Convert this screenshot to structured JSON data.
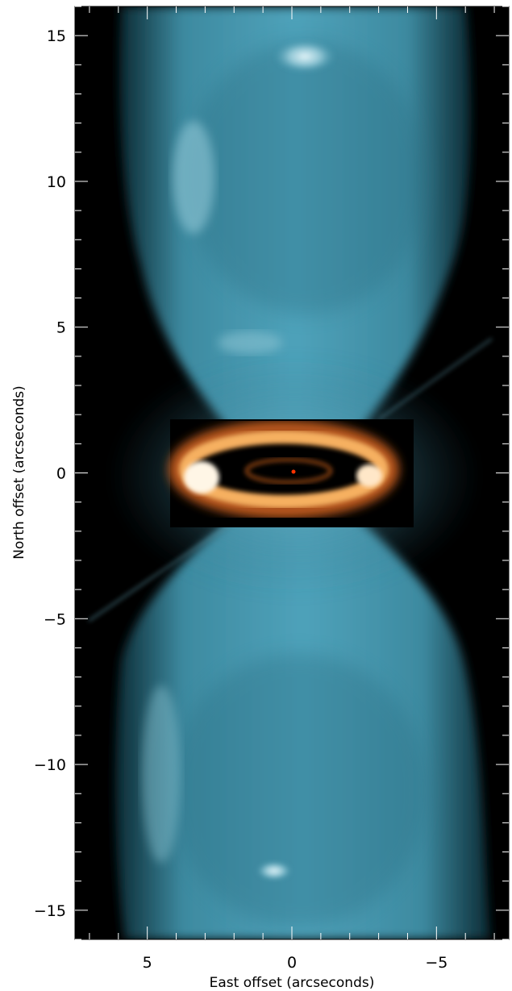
{
  "figure": {
    "xlabel": "East offset (arcseconds)",
    "ylabel": "North offset (arcseconds)",
    "x_range": [
      7.5,
      -7.5
    ],
    "y_range": [
      -16,
      16
    ],
    "x_ticks": [
      {
        "value": 5,
        "label": "5"
      },
      {
        "value": 0,
        "label": "0"
      },
      {
        "value": -5,
        "label": "−5"
      }
    ],
    "y_ticks": [
      {
        "value": 15,
        "label": "15"
      },
      {
        "value": 10,
        "label": "10"
      },
      {
        "value": 5,
        "label": "5"
      },
      {
        "value": 0,
        "label": "0"
      },
      {
        "value": -5,
        "label": "−5"
      },
      {
        "value": -10,
        "label": "−10"
      },
      {
        "value": -15,
        "label": "−15"
      }
    ],
    "minor_tick_step": 1,
    "colors": {
      "background": "#000000",
      "nebula_lobes": "#4a9fb8",
      "nebula_highlight": "#c8e6ee",
      "ring": "#f0a040",
      "ring_highlight": "#ffffff",
      "center_star": "#ff3300"
    }
  }
}
